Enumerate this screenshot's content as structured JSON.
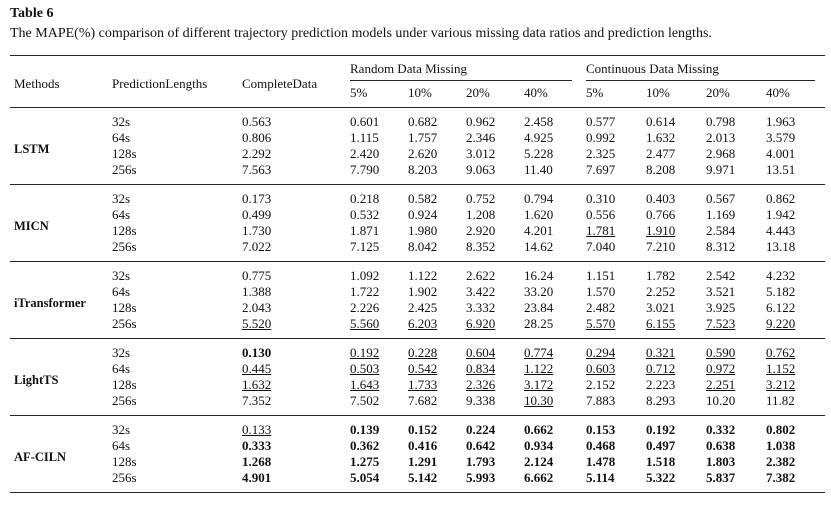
{
  "title": "Table 6",
  "caption": "The MAPE(%) comparison of different trajectory prediction models under various missing data ratios and prediction lengths.",
  "header": {
    "methods": "Methods",
    "lengths": "PredictionLengths",
    "complete": "CompleteData",
    "random": "Random Data Missing",
    "continuous": "Continuous Data Missing",
    "ratios": [
      "5%",
      "10%",
      "20%",
      "40%"
    ]
  },
  "groups": [
    {
      "method": "LSTM",
      "rows": [
        {
          "length": "32s",
          "cells": [
            "0.563",
            "0.601",
            "0.682",
            "0.962",
            "2.458",
            "0.577",
            "0.614",
            "0.798",
            "1.963"
          ]
        },
        {
          "length": "64s",
          "cells": [
            "0.806",
            "1.115",
            "1.757",
            "2.346",
            "4.925",
            "0.992",
            "1.632",
            "2.013",
            "3.579"
          ]
        },
        {
          "length": "128s",
          "cells": [
            "2.292",
            "2.420",
            "2.620",
            "3.012",
            "5.228",
            "2.325",
            "2.477",
            "2.968",
            "4.001"
          ]
        },
        {
          "length": "256s",
          "cells": [
            "7.563",
            "7.790",
            "8.203",
            "9.063",
            "11.40",
            "7.697",
            "8.208",
            "9.971",
            "13.51"
          ]
        }
      ]
    },
    {
      "method": "MICN",
      "rows": [
        {
          "length": "32s",
          "cells": [
            "0.173",
            "0.218",
            "0.582",
            "0.752",
            "0.794",
            "0.310",
            "0.403",
            "0.567",
            "0.862"
          ]
        },
        {
          "length": "64s",
          "cells": [
            "0.499",
            "0.532",
            "0.924",
            "1.208",
            "1.620",
            "0.556",
            "0.766",
            "1.169",
            "1.942"
          ]
        },
        {
          "length": "128s",
          "cells": [
            "1.730",
            "1.871",
            "1.980",
            "2.920",
            "4.201",
            "1.781",
            "1.910",
            "2.584",
            "4.443"
          ],
          "underline": [
            5,
            6
          ]
        },
        {
          "length": "256s",
          "cells": [
            "7.022",
            "7.125",
            "8.042",
            "8.352",
            "14.62",
            "7.040",
            "7.210",
            "8.312",
            "13.18"
          ]
        }
      ]
    },
    {
      "method": "iTransformer",
      "rows": [
        {
          "length": "32s",
          "cells": [
            "0.775",
            "1.092",
            "1.122",
            "2.622",
            "16.24",
            "1.151",
            "1.782",
            "2.542",
            "4.232"
          ]
        },
        {
          "length": "64s",
          "cells": [
            "1.388",
            "1.722",
            "1.902",
            "3.422",
            "33.20",
            "1.570",
            "2.252",
            "3.521",
            "5.182"
          ]
        },
        {
          "length": "128s",
          "cells": [
            "2.043",
            "2.226",
            "2.425",
            "3.332",
            "23.84",
            "2.482",
            "3.021",
            "3.925",
            "6.122"
          ]
        },
        {
          "length": "256s",
          "cells": [
            "5.520",
            "5.560",
            "6.203",
            "6.920",
            "28.25",
            "5.570",
            "6.155",
            "7.523",
            "9.220"
          ],
          "underline": [
            0,
            1,
            2,
            3,
            5,
            6,
            7,
            8
          ]
        }
      ]
    },
    {
      "method": "LightTS",
      "rows": [
        {
          "length": "32s",
          "cells": [
            "0.130",
            "0.192",
            "0.228",
            "0.604",
            "0.774",
            "0.294",
            "0.321",
            "0.590",
            "0.762"
          ],
          "bold": [
            0
          ],
          "underline": [
            1,
            2,
            3,
            4,
            5,
            6,
            7,
            8
          ]
        },
        {
          "length": "64s",
          "cells": [
            "0.445",
            "0.503",
            "0.542",
            "0.834",
            "1.122",
            "0.603",
            "0.712",
            "0.972",
            "1.152"
          ],
          "underline": [
            0,
            1,
            2,
            3,
            4,
            5,
            6,
            7,
            8
          ]
        },
        {
          "length": "128s",
          "cells": [
            "1.632",
            "1.643",
            "1.733",
            "2.326",
            "3.172",
            "2.152",
            "2.223",
            "2.251",
            "3.212"
          ],
          "underline": [
            0,
            1,
            2,
            3,
            4,
            7,
            8
          ]
        },
        {
          "length": "256s",
          "cells": [
            "7.352",
            "7.502",
            "7.682",
            "9.338",
            "10.30",
            "7.883",
            "8.293",
            "10.20",
            "11.82"
          ],
          "underline": [
            4
          ]
        }
      ]
    },
    {
      "method": "AF-CILN",
      "rows": [
        {
          "length": "32s",
          "cells": [
            "0.133",
            "0.139",
            "0.152",
            "0.224",
            "0.662",
            "0.153",
            "0.192",
            "0.332",
            "0.802"
          ],
          "bold": [
            1,
            2,
            3,
            4,
            5,
            6,
            7,
            8
          ],
          "underline": [
            0
          ]
        },
        {
          "length": "64s",
          "cells": [
            "0.333",
            "0.362",
            "0.416",
            "0.642",
            "0.934",
            "0.468",
            "0.497",
            "0.638",
            "1.038"
          ],
          "bold": [
            0,
            1,
            2,
            3,
            4,
            5,
            6,
            7,
            8
          ]
        },
        {
          "length": "128s",
          "cells": [
            "1.268",
            "1.275",
            "1.291",
            "1.793",
            "2.124",
            "1.478",
            "1.518",
            "1.803",
            "2.382"
          ],
          "bold": [
            0,
            1,
            2,
            3,
            4,
            5,
            6,
            7,
            8
          ]
        },
        {
          "length": "256s",
          "cells": [
            "4.901",
            "5.054",
            "5.142",
            "5.993",
            "6.662",
            "5.114",
            "5.322",
            "5.837",
            "7.382"
          ],
          "bold": [
            0,
            1,
            2,
            3,
            4,
            5,
            6,
            7,
            8
          ]
        }
      ]
    }
  ]
}
